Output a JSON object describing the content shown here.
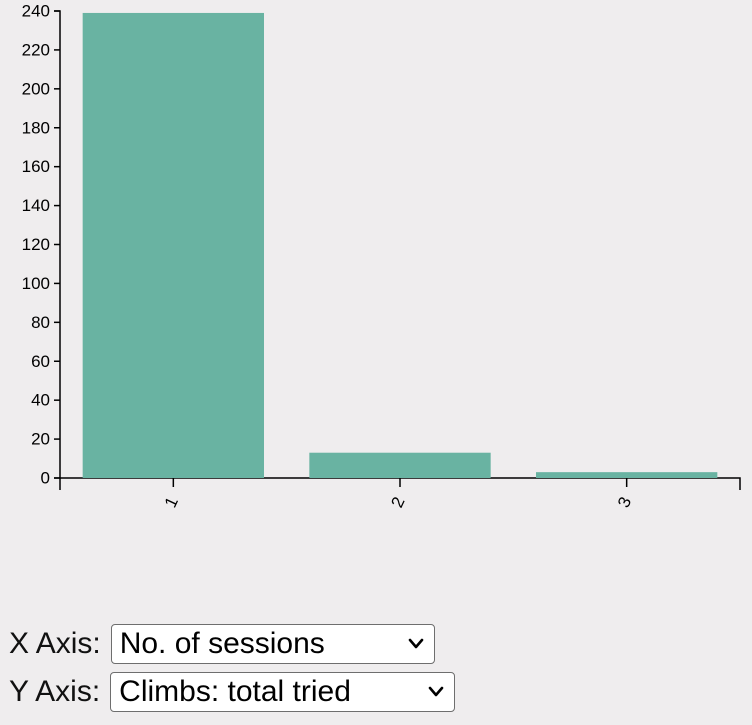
{
  "chart_data": {
    "type": "bar",
    "categories": [
      "1",
      "2",
      "3"
    ],
    "values": [
      239,
      13,
      3
    ],
    "title": "",
    "xlabel": "",
    "ylabel": "",
    "ylim": [
      0,
      240
    ],
    "y_ticks": [
      0,
      20,
      40,
      60,
      80,
      100,
      120,
      140,
      160,
      180,
      200,
      220,
      240
    ],
    "x_tick_rotation": "rotated",
    "grid": false,
    "legend": "none",
    "bar_color": "#69b3a2",
    "axis_color": "#000000"
  },
  "controls": {
    "x_axis": {
      "label": "X Axis:",
      "selected": "No. of sessions"
    },
    "y_axis": {
      "label": "Y Axis:",
      "selected": "Climbs: total tried"
    }
  },
  "icons": {
    "dropdown": "chevron-down-icon"
  }
}
